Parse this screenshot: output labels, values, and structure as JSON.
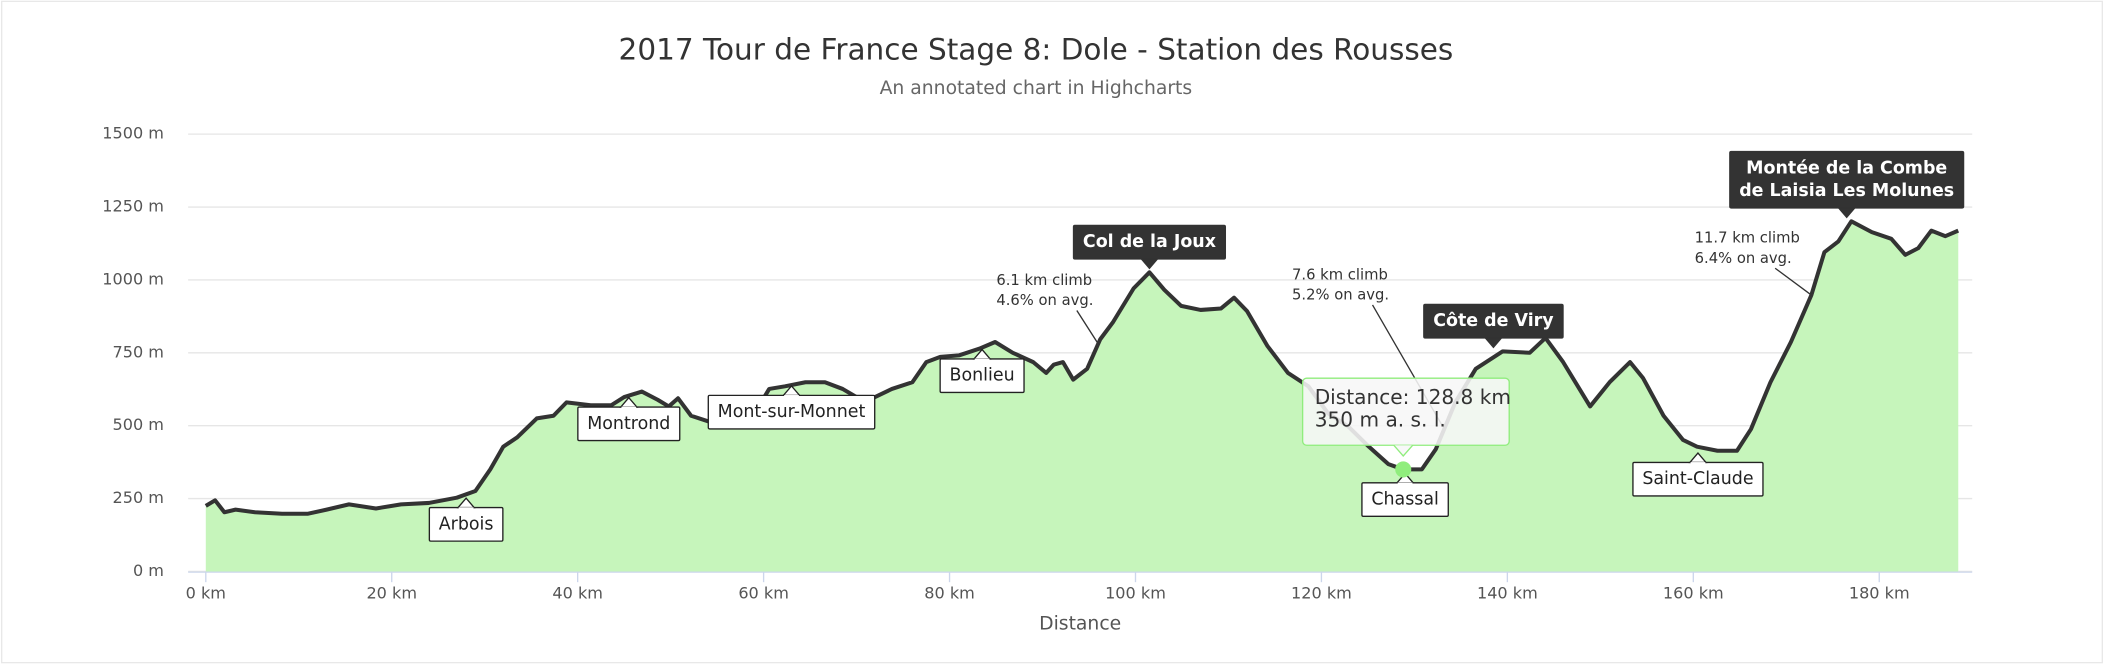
{
  "chart_data": {
    "type": "area",
    "title": "2017 Tour de France Stage 8: Dole - Station des Rousses",
    "subtitle": "An annotated chart in Highcharts",
    "x_label": "Distance",
    "x": [
      0,
      1,
      2,
      3.2,
      5.3,
      8.2,
      11,
      13,
      15.4,
      18.3,
      21,
      24,
      27,
      29,
      30.6,
      32,
      33.5,
      35.6,
      37.4,
      38.8,
      41.4,
      43.6,
      45,
      46.9,
      48.6,
      49.8,
      50.8,
      52.2,
      54.4,
      56.5,
      58.7,
      60.6,
      62.3,
      64.5,
      66.6,
      68.5,
      70.2,
      71.7,
      73.8,
      76,
      77.5,
      79,
      81,
      83.2,
      84.9,
      86.8,
      89,
      90.4,
      91.2,
      92.2,
      93.3,
      94.8,
      96.2,
      97.6,
      99.8,
      101.5,
      103.1,
      104.9,
      107,
      109.2,
      110.6,
      112,
      114.2,
      116.4,
      118.6,
      120.7,
      122.9,
      125.1,
      127.2,
      128.8,
      130.8,
      132.3,
      134.4,
      136.6,
      139.5,
      142.4,
      144.1,
      146,
      148.9,
      151,
      153.2,
      154.6,
      156.8,
      158.9,
      160.4,
      162.6,
      164.7,
      166.2,
      168.3,
      170.5,
      172.7,
      174.1,
      175.6,
      177,
      179.2,
      181.3,
      182.8,
      184.2,
      185.6,
      187.1,
      188.5
    ],
    "series": [
      {
        "color": "#333333",
        "fill": "#c6f5bb",
        "values": [
          225,
          244,
          203,
          212,
          203,
          198,
          198,
          212,
          230,
          216,
          230,
          235,
          253,
          276,
          350,
          428,
          460,
          525,
          534,
          580,
          570,
          570,
          598,
          617,
          589,
          566,
          594,
          534,
          511,
          506,
          525,
          626,
          635,
          649,
          649,
          626,
          594,
          594,
          626,
          649,
          718,
          736,
          741,
          764,
          787,
          750,
          718,
          681,
          709,
          718,
          658,
          695,
          796,
          856,
          971,
          1026,
          966,
          911,
          897,
          902,
          939,
          893,
          773,
          681,
          635,
          543,
          497,
          428,
          368,
          350,
          350,
          419,
          580,
          695,
          755,
          750,
          801,
          718,
          566,
          649,
          718,
          663,
          534,
          451,
          428,
          414,
          414,
          488,
          649,
          787,
          948,
          1095,
          1132,
          1201,
          1164,
          1141,
          1086,
          1109,
          1169,
          1150,
          1169
        ]
      }
    ],
    "xlim": [
      -1.9,
      190
    ],
    "xticks": [
      {
        "value": 0,
        "label": "0 km"
      },
      {
        "value": 20,
        "label": "20 km"
      },
      {
        "value": 40,
        "label": "40 km"
      },
      {
        "value": 60,
        "label": "60 km"
      },
      {
        "value": 80,
        "label": "80 km"
      },
      {
        "value": 100,
        "label": "100 km"
      },
      {
        "value": 120,
        "label": "120 km"
      },
      {
        "value": 140,
        "label": "140 km"
      },
      {
        "value": 160,
        "label": "160 km"
      },
      {
        "value": 180,
        "label": "180 km"
      }
    ],
    "ylim": [
      0,
      1500
    ],
    "yticks": [
      {
        "value": 0,
        "label": "0 m"
      },
      {
        "value": 250,
        "label": "250 m"
      },
      {
        "value": 500,
        "label": "500 m"
      },
      {
        "value": 750,
        "label": "750 m"
      },
      {
        "value": 1000,
        "label": "1000 m"
      },
      {
        "value": 1250,
        "label": "1250 m"
      },
      {
        "value": 1500,
        "label": "1500 m"
      }
    ],
    "grid": true,
    "place_labels": [
      {
        "label": "Arbois",
        "x": 28,
        "y": 265,
        "side": "below"
      },
      {
        "label": "Montrond",
        "x": 45.5,
        "y": 610,
        "side": "below"
      },
      {
        "label": "Mont-sur-Monnet",
        "x": 63,
        "y": 650,
        "side": "below"
      },
      {
        "label": "Bonlieu",
        "x": 83.5,
        "y": 775,
        "side": "below"
      },
      {
        "label": "Chassal",
        "x": 129,
        "y": 350,
        "side": "below"
      },
      {
        "label": "Saint-Claude",
        "x": 160.5,
        "y": 420,
        "side": "below"
      },
      {
        "label": "Col de la Joux",
        "x": 101.5,
        "y": 1026,
        "side": "above"
      },
      {
        "label": "Côte de Viry",
        "x": 138.5,
        "y": 755,
        "side": "above"
      },
      {
        "label": "Montée de la Combe\nde Laisia Les Molunes",
        "x": 176.5,
        "y": 1201,
        "side": "above"
      }
    ],
    "climb_labels": [
      {
        "lines": [
          "6.1 km climb",
          "4.6% on avg."
        ],
        "x": 96,
        "y": 780
      },
      {
        "lines": [
          "7.6 km climb",
          "5.2% on avg."
        ],
        "x": 133,
        "y": 500
      },
      {
        "lines": [
          "11.7 km climb",
          "6.4% on avg."
        ],
        "x": 172.7,
        "y": 948
      }
    ],
    "tooltip": {
      "lines": [
        "Distance: 128.8 km",
        "350 m a. s. l."
      ],
      "x": 128.8,
      "y": 350
    }
  }
}
